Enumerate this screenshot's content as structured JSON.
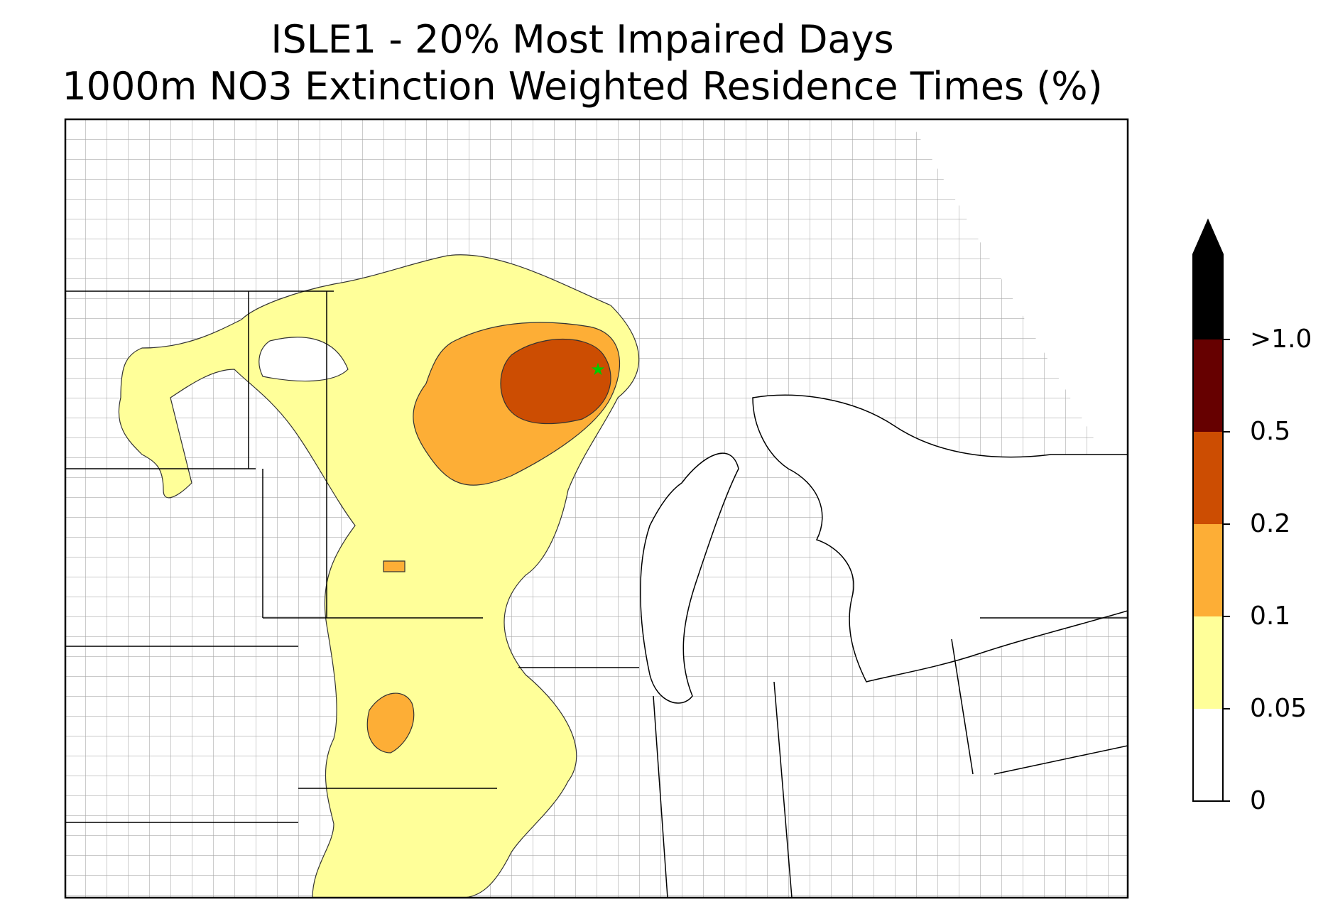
{
  "title": {
    "line1": "ISLE1 - 20% Most Impaired Days",
    "line2": "1000m NO3 Extinction Weighted Residence Times (%)"
  },
  "site_marker": {
    "icon": "star-icon",
    "color": "#00cc00"
  },
  "colorbar": {
    "extend": "max",
    "levels": [
      {
        "label": "0",
        "color": "#ffffff"
      },
      {
        "label": "0.05",
        "color": "#ffff99"
      },
      {
        "label": "0.1",
        "color": "#fdae36"
      },
      {
        "label": "0.2",
        "color": "#cc4d02"
      },
      {
        "label": "0.5",
        "color": "#660000"
      },
      {
        "label": ">1.0",
        "color": "#000000"
      }
    ]
  }
}
